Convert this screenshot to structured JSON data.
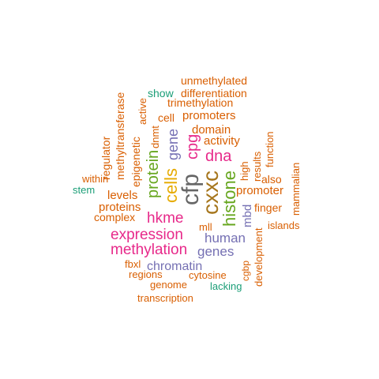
{
  "palette": {
    "orange": "#D95F02",
    "teal": "#1B9E77",
    "purple": "#7570B3",
    "magenta": "#E7298A",
    "green": "#66A61E",
    "gold": "#E6AB02",
    "brown": "#A6761D",
    "gray": "#666666"
  },
  "words": [
    {
      "text": "cfp",
      "color": "gray"
    },
    {
      "text": "cxxc",
      "color": "brown"
    },
    {
      "text": "cells",
      "color": "gold"
    },
    {
      "text": "histone",
      "color": "green"
    },
    {
      "text": "protein",
      "color": "green"
    },
    {
      "text": "dna",
      "color": "magenta"
    },
    {
      "text": "cpg",
      "color": "magenta"
    },
    {
      "text": "gene",
      "color": "purple"
    },
    {
      "text": "hkme",
      "color": "magenta"
    },
    {
      "text": "expression",
      "color": "magenta"
    },
    {
      "text": "methylation",
      "color": "magenta"
    },
    {
      "text": "human",
      "color": "purple"
    },
    {
      "text": "genes",
      "color": "purple"
    },
    {
      "text": "chromatin",
      "color": "purple"
    },
    {
      "text": "mbd",
      "color": "purple"
    },
    {
      "text": "unmethylated",
      "color": "orange"
    },
    {
      "text": "differentiation",
      "color": "orange"
    },
    {
      "text": "show",
      "color": "teal"
    },
    {
      "text": "trimethylation",
      "color": "orange"
    },
    {
      "text": "cell",
      "color": "orange"
    },
    {
      "text": "promoters",
      "color": "orange"
    },
    {
      "text": "domain",
      "color": "orange"
    },
    {
      "text": "activity",
      "color": "orange"
    },
    {
      "text": "active",
      "color": "orange"
    },
    {
      "text": "dnmt",
      "color": "orange"
    },
    {
      "text": "methyltransferase",
      "color": "orange"
    },
    {
      "text": "epigenetic",
      "color": "orange"
    },
    {
      "text": "regulator",
      "color": "orange"
    },
    {
      "text": "within",
      "color": "orange"
    },
    {
      "text": "stem",
      "color": "teal"
    },
    {
      "text": "levels",
      "color": "orange"
    },
    {
      "text": "proteins",
      "color": "orange"
    },
    {
      "text": "complex",
      "color": "orange"
    },
    {
      "text": "high",
      "color": "orange"
    },
    {
      "text": "results",
      "color": "orange"
    },
    {
      "text": "function",
      "color": "orange"
    },
    {
      "text": "also",
      "color": "orange"
    },
    {
      "text": "promoter",
      "color": "orange"
    },
    {
      "text": "mammalian",
      "color": "orange"
    },
    {
      "text": "finger",
      "color": "orange"
    },
    {
      "text": "islands",
      "color": "orange"
    },
    {
      "text": "mll",
      "color": "orange"
    },
    {
      "text": "fbxl",
      "color": "orange"
    },
    {
      "text": "regions",
      "color": "orange"
    },
    {
      "text": "cytosine",
      "color": "orange"
    },
    {
      "text": "genome",
      "color": "orange"
    },
    {
      "text": "lacking",
      "color": "teal"
    },
    {
      "text": "cgbp",
      "color": "orange"
    },
    {
      "text": "development",
      "color": "orange"
    },
    {
      "text": "transcription",
      "color": "orange"
    }
  ]
}
